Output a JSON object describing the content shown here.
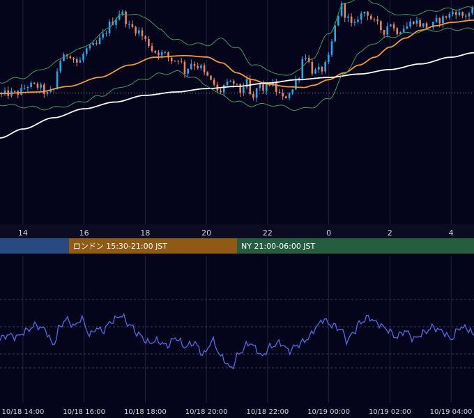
{
  "chart_data": [
    {
      "type": "candlestick",
      "panel": "price",
      "x_axis_labels": [
        "14",
        "16",
        "18",
        "20",
        "22",
        "0",
        "2",
        "4"
      ],
      "x_range_hours": [
        13.25,
        28.75
      ],
      "y_range": [
        0,
        100
      ],
      "grid": true,
      "dotted_reference_level": 58.5,
      "indicators": [
        {
          "kind": "sma",
          "color": "#f59a30",
          "anchors": [
            [
              13.25,
              58.3
            ],
            [
              14.5,
              59.0
            ],
            [
              15.5,
              61.5
            ],
            [
              16.5,
              65.5
            ],
            [
              17.5,
              71.0
            ],
            [
              18.3,
              74.5
            ],
            [
              19.3,
              75.2
            ],
            [
              20.0,
              74.6
            ],
            [
              20.5,
              72.0
            ],
            [
              21.0,
              67.5
            ],
            [
              21.5,
              64.5
            ],
            [
              22.0,
              62.5
            ],
            [
              22.7,
              61.3
            ],
            [
              23.2,
              61.0
            ],
            [
              23.5,
              62.0
            ],
            [
              24.0,
              64.5
            ],
            [
              24.5,
              67.5
            ],
            [
              25.0,
              71.0
            ],
            [
              25.5,
              74.5
            ],
            [
              26.0,
              79.0
            ],
            [
              26.5,
              83.0
            ],
            [
              27.0,
              86.5
            ],
            [
              27.5,
              88.5
            ],
            [
              28.0,
              90.0
            ],
            [
              28.75,
              91.0
            ]
          ]
        },
        {
          "kind": "sma_long",
          "color": "#ffffff",
          "anchors": [
            [
              13.25,
              38.5
            ],
            [
              14.0,
              42.5
            ],
            [
              15.0,
              47.5
            ],
            [
              16.0,
              51.5
            ],
            [
              17.0,
              54.5
            ],
            [
              18.0,
              57.5
            ],
            [
              19.0,
              59.0
            ],
            [
              20.0,
              60.5
            ],
            [
              21.0,
              61.5
            ],
            [
              22.0,
              63.0
            ],
            [
              23.0,
              64.5
            ],
            [
              24.0,
              65.5
            ],
            [
              25.0,
              67.0
            ],
            [
              26.0,
              69.0
            ],
            [
              27.0,
              71.5
            ],
            [
              28.0,
              74.5
            ],
            [
              28.75,
              76.5
            ]
          ]
        },
        {
          "kind": "bollinger_upper",
          "color": "#3aa05a",
          "anchors": [
            [
              13.25,
              63.5
            ],
            [
              14.0,
              65.5
            ],
            [
              14.8,
              70.0
            ],
            [
              15.5,
              76.0
            ],
            [
              16.2,
              80.5
            ],
            [
              16.8,
              88.0
            ],
            [
              17.3,
              94.0
            ],
            [
              18.0,
              92.5
            ],
            [
              18.5,
              86.5
            ],
            [
              19.0,
              82.0
            ],
            [
              19.5,
              80.5
            ],
            [
              20.0,
              80.0
            ],
            [
              20.5,
              82.5
            ],
            [
              21.0,
              78.5
            ],
            [
              21.5,
              71.5
            ],
            [
              22.0,
              69.0
            ],
            [
              22.5,
              66.0
            ],
            [
              23.0,
              68.5
            ],
            [
              23.5,
              74.5
            ],
            [
              24.0,
              85.0
            ],
            [
              24.5,
              98.0
            ],
            [
              25.0,
              101.5
            ],
            [
              25.5,
              99.0
            ],
            [
              26.0,
              94.5
            ],
            [
              26.5,
              93.0
            ],
            [
              27.0,
              94.0
            ],
            [
              27.5,
              95.5
            ],
            [
              28.0,
              96.0
            ],
            [
              28.75,
              96.5
            ]
          ]
        },
        {
          "kind": "bollinger_lower",
          "color": "#3aa05a",
          "anchors": [
            [
              13.25,
              53.5
            ],
            [
              14.0,
              52.5
            ],
            [
              14.8,
              51.5
            ],
            [
              15.5,
              53.0
            ],
            [
              16.0,
              55.0
            ],
            [
              16.5,
              57.0
            ],
            [
              17.0,
              60.0
            ],
            [
              17.5,
              62.5
            ],
            [
              18.0,
              65.0
            ],
            [
              18.5,
              67.0
            ],
            [
              19.0,
              68.0
            ],
            [
              19.5,
              66.0
            ],
            [
              20.0,
              62.0
            ],
            [
              20.5,
              57.5
            ],
            [
              21.0,
              54.5
            ],
            [
              21.5,
              53.0
            ],
            [
              22.0,
              53.5
            ],
            [
              22.5,
              52.5
            ],
            [
              23.0,
              51.0
            ],
            [
              23.5,
              52.5
            ],
            [
              24.0,
              56.0
            ],
            [
              24.5,
              66.5
            ],
            [
              25.0,
              76.5
            ],
            [
              25.5,
              81.0
            ],
            [
              26.0,
              83.5
            ],
            [
              26.5,
              85.0
            ],
            [
              27.0,
              86.0
            ],
            [
              27.5,
              86.5
            ],
            [
              28.0,
              87.0
            ],
            [
              28.75,
              87.0
            ]
          ]
        }
      ],
      "close_path": [
        [
          13.25,
          58.0
        ],
        [
          13.8,
          58.5
        ],
        [
          14.2,
          62.0
        ],
        [
          14.5,
          61.5
        ],
        [
          14.8,
          58.0
        ],
        [
          15.0,
          60.0
        ],
        [
          15.2,
          73.0
        ],
        [
          15.5,
          76.0
        ],
        [
          15.8,
          72.0
        ],
        [
          16.1,
          78.0
        ],
        [
          16.4,
          80.0
        ],
        [
          16.6,
          84.0
        ],
        [
          16.9,
          90.0
        ],
        [
          17.2,
          94.5
        ],
        [
          17.5,
          88.0
        ],
        [
          17.8,
          86.0
        ],
        [
          18.0,
          82.0
        ],
        [
          18.3,
          77.0
        ],
        [
          18.6,
          76.0
        ],
        [
          18.9,
          73.0
        ],
        [
          19.1,
          74.0
        ],
        [
          19.3,
          68.0
        ],
        [
          19.5,
          72.0
        ],
        [
          19.8,
          70.0
        ],
        [
          20.0,
          66.0
        ],
        [
          20.2,
          63.0
        ],
        [
          20.4,
          58.5
        ],
        [
          20.6,
          62.0
        ],
        [
          20.9,
          63.0
        ],
        [
          21.1,
          59.0
        ],
        [
          21.3,
          63.5
        ],
        [
          21.5,
          55.0
        ],
        [
          21.7,
          62.0
        ],
        [
          21.9,
          60.0
        ],
        [
          22.1,
          63.0
        ],
        [
          22.3,
          59.5
        ],
        [
          22.5,
          56.0
        ],
        [
          22.8,
          60.0
        ],
        [
          23.0,
          66.0
        ],
        [
          23.2,
          76.0
        ],
        [
          23.5,
          68.0
        ],
        [
          23.8,
          69.0
        ],
        [
          24.0,
          74.0
        ],
        [
          24.2,
          88.0
        ],
        [
          24.4,
          97.5
        ],
        [
          24.6,
          92.0
        ],
        [
          24.8,
          88.0
        ],
        [
          25.0,
          93.0
        ],
        [
          25.2,
          95.0
        ],
        [
          25.5,
          90.0
        ],
        [
          25.8,
          86.0
        ],
        [
          26.0,
          90.0
        ],
        [
          26.2,
          86.0
        ],
        [
          26.5,
          88.0
        ],
        [
          26.8,
          91.0
        ],
        [
          27.0,
          89.0
        ],
        [
          27.3,
          88.0
        ],
        [
          27.6,
          91.0
        ],
        [
          27.9,
          93.0
        ],
        [
          28.1,
          95.0
        ],
        [
          28.4,
          93.0
        ],
        [
          28.75,
          95.0
        ]
      ]
    },
    {
      "type": "line",
      "panel": "oscillator",
      "x": [
        "10/18 14:00",
        "10/18 16:00",
        "10/18 18:00",
        "10/18 20:00",
        "10/18 22:00",
        "10/19 00:00",
        "10/19 02:00",
        "10/19 04:00"
      ],
      "series_color": "#5a68e8",
      "y_range": [
        0,
        100
      ],
      "grid": true,
      "anchors": [
        [
          13.25,
          44.0
        ],
        [
          13.5,
          48.0
        ],
        [
          13.8,
          46.0
        ],
        [
          14.1,
          52.0
        ],
        [
          14.4,
          58.0
        ],
        [
          14.7,
          54.0
        ],
        [
          15.0,
          38.0
        ],
        [
          15.2,
          56.0
        ],
        [
          15.4,
          64.0
        ],
        [
          15.7,
          57.0
        ],
        [
          15.9,
          65.0
        ],
        [
          16.2,
          48.0
        ],
        [
          16.4,
          55.0
        ],
        [
          16.6,
          52.0
        ],
        [
          16.9,
          62.0
        ],
        [
          17.2,
          68.0
        ],
        [
          17.5,
          58.0
        ],
        [
          17.8,
          48.0
        ],
        [
          18.1,
          40.0
        ],
        [
          18.4,
          42.0
        ],
        [
          18.7,
          37.0
        ],
        [
          19.0,
          45.0
        ],
        [
          19.3,
          36.0
        ],
        [
          19.6,
          40.0
        ],
        [
          19.9,
          28.0
        ],
        [
          20.2,
          42.0
        ],
        [
          20.5,
          25.0
        ],
        [
          20.8,
          14.0
        ],
        [
          21.1,
          30.0
        ],
        [
          21.4,
          40.0
        ],
        [
          21.6,
          35.0
        ],
        [
          21.8,
          26.0
        ],
        [
          22.1,
          36.0
        ],
        [
          22.4,
          40.0
        ],
        [
          22.7,
          32.0
        ],
        [
          23.0,
          38.0
        ],
        [
          23.3,
          44.0
        ],
        [
          23.6,
          56.0
        ],
        [
          23.8,
          64.0
        ],
        [
          24.1,
          58.0
        ],
        [
          24.4,
          54.0
        ],
        [
          24.6,
          42.0
        ],
        [
          24.8,
          50.0
        ],
        [
          25.0,
          60.0
        ],
        [
          25.3,
          66.0
        ],
        [
          25.6,
          60.0
        ],
        [
          25.9,
          54.0
        ],
        [
          26.2,
          46.0
        ],
        [
          26.5,
          52.0
        ],
        [
          26.8,
          44.0
        ],
        [
          27.1,
          50.0
        ],
        [
          27.4,
          56.0
        ],
        [
          27.7,
          52.0
        ],
        [
          28.0,
          44.0
        ],
        [
          28.3,
          56.0
        ],
        [
          28.6,
          54.0
        ],
        [
          28.75,
          46.0
        ]
      ]
    }
  ],
  "session_bar": {
    "sessions": [
      {
        "label": "",
        "color": "#274a82",
        "start": 13.25,
        "end": 15.5
      },
      {
        "label": "ロンドン 15:30-21:00 JST",
        "color": "#8e5a14",
        "start": 15.5,
        "end": 21.0
      },
      {
        "label": "NY 21:00-06:00 JST",
        "color": "#245e3e",
        "start": 21.0,
        "end": 28.75
      }
    ]
  }
}
